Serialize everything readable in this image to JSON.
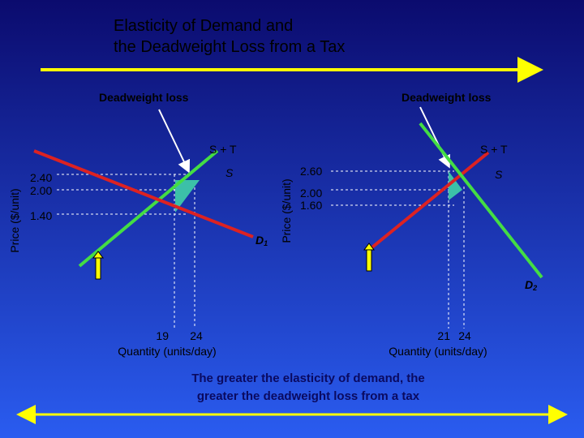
{
  "title": {
    "line1": "Elasticity of Demand and",
    "line2": "the Deadweight Loss from a Tax"
  },
  "left_panel": {
    "callout": "Deadweight loss",
    "supply_tax_label": "S + T",
    "supply_label": "S",
    "demand_label": "D",
    "demand_subscript": "1",
    "y_axis_label": "Price ($/unit)",
    "y_labels": [
      "2.40",
      "2.00",
      "1.40"
    ],
    "x_labels": [
      "19",
      "24"
    ],
    "x_axis_label": "Quantity (units/day)"
  },
  "right_panel": {
    "callout": "Deadweight loss",
    "supply_tax_label": "S + T",
    "supply_label": "S",
    "demand_label": "D",
    "demand_subscript": "2",
    "y_axis_label": "Price ($/unit)",
    "y_labels": [
      "2.60",
      "2.00",
      "1.60"
    ],
    "x_labels": [
      "21",
      "24"
    ],
    "x_axis_label": "Quantity (units/day)"
  },
  "conclusion": {
    "line1": "The greater the elasticity of demand, the",
    "line2": "greater the deadweight loss from a tax"
  }
}
